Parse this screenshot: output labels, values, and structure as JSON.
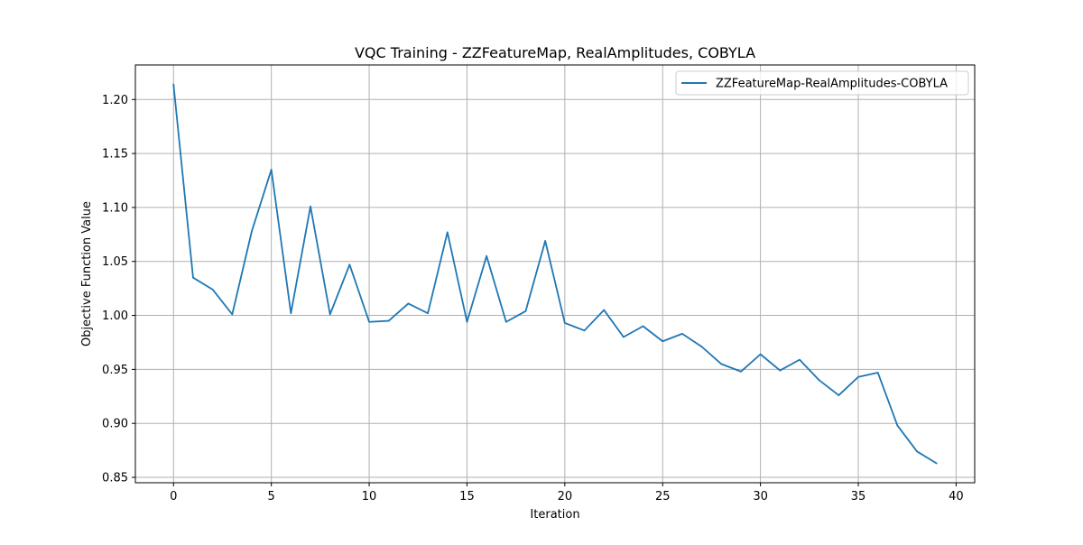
{
  "chart_data": {
    "type": "line",
    "title": "VQC Training - ZZFeatureMap, RealAmplitudes, COBYLA",
    "xlabel": "Iteration",
    "ylabel": "Objective Function Value",
    "xlim": [
      -1.95,
      40.95
    ],
    "ylim": [
      0.845,
      1.232
    ],
    "xticks": [
      0,
      5,
      10,
      15,
      20,
      25,
      30,
      35,
      40
    ],
    "xtick_labels": [
      "0",
      "5",
      "10",
      "15",
      "20",
      "25",
      "30",
      "35",
      "40"
    ],
    "yticks": [
      0.85,
      0.9,
      0.95,
      1.0,
      1.05,
      1.1,
      1.15,
      1.2
    ],
    "ytick_labels": [
      "0.85",
      "0.90",
      "0.95",
      "1.00",
      "1.05",
      "1.10",
      "1.15",
      "1.20"
    ],
    "grid": true,
    "legend_position": "top-right",
    "series": [
      {
        "name": "ZZFeatureMap-RealAmplitudes-COBYLA",
        "color": "#1f77b4",
        "x": [
          0,
          1,
          2,
          3,
          4,
          5,
          6,
          7,
          8,
          9,
          10,
          11,
          12,
          13,
          14,
          15,
          16,
          17,
          18,
          19,
          20,
          21,
          22,
          23,
          24,
          25,
          26,
          27,
          28,
          29,
          30,
          31,
          32,
          33,
          34,
          35,
          36,
          37,
          38,
          39
        ],
        "values": [
          1.214,
          1.035,
          1.024,
          1.001,
          1.078,
          1.135,
          1.002,
          1.101,
          1.001,
          1.047,
          0.994,
          0.995,
          1.011,
          1.002,
          1.077,
          0.994,
          1.055,
          0.994,
          1.004,
          1.069,
          0.993,
          0.986,
          1.005,
          0.98,
          0.99,
          0.976,
          0.983,
          0.971,
          0.955,
          0.948,
          0.964,
          0.949,
          0.959,
          0.94,
          0.926,
          0.943,
          0.947,
          0.898,
          0.874,
          0.863
        ]
      }
    ]
  }
}
